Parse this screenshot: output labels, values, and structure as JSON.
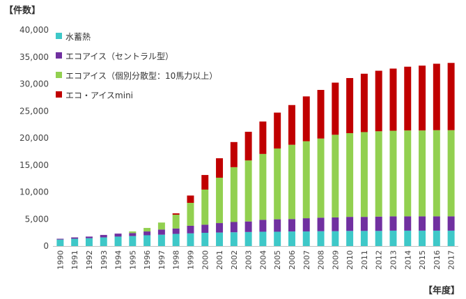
{
  "chart_data": {
    "type": "bar",
    "stacked": true,
    "ylabel": "【件数】",
    "xlabel": "【年度】",
    "ylim": [
      0,
      40000
    ],
    "yticks": [
      "0",
      "5,000",
      "10,000",
      "15,000",
      "20,000",
      "25,000",
      "30,000",
      "35,000",
      "40,000"
    ],
    "grid": false,
    "legend_position": "top-left",
    "categories": [
      "1990",
      "1991",
      "1992",
      "1993",
      "1994",
      "1995",
      "1996",
      "1997",
      "1998",
      "1999",
      "2000",
      "2001",
      "2002",
      "2003",
      "2004",
      "2005",
      "2006",
      "2007",
      "2008",
      "2009",
      "2010",
      "2011",
      "2012",
      "2013",
      "2014",
      "2015",
      "2016",
      "2017"
    ],
    "series": [
      {
        "name": "水蓄熱",
        "color": "#3ec8c8",
        "values": [
          1200,
          1350,
          1450,
          1600,
          1750,
          1850,
          2000,
          2100,
          2250,
          2350,
          2450,
          2500,
          2550,
          2600,
          2650,
          2650,
          2700,
          2700,
          2750,
          2750,
          2800,
          2800,
          2800,
          2850,
          2850,
          2850,
          2850,
          2850
        ]
      },
      {
        "name": "エコアイス（セントラル型）",
        "color": "#7030a0",
        "values": [
          150,
          250,
          300,
          450,
          550,
          550,
          700,
          950,
          1000,
          1400,
          1500,
          1750,
          1900,
          1950,
          2200,
          2300,
          2300,
          2450,
          2500,
          2550,
          2600,
          2600,
          2650,
          2650,
          2650,
          2650,
          2650,
          2650
        ]
      },
      {
        "name": "エコアイス（個別分散型：10馬力以上）",
        "color": "#92d050",
        "values": [
          0,
          0,
          0,
          0,
          0,
          300,
          650,
          1300,
          2550,
          4250,
          6500,
          8400,
          10150,
          11300,
          12200,
          13100,
          13750,
          14250,
          14650,
          15300,
          15500,
          15700,
          15800,
          15850,
          15900,
          15900,
          15950,
          15950
        ]
      },
      {
        "name": "エコ・アイスmini",
        "color": "#c00000",
        "values": [
          0,
          0,
          0,
          0,
          0,
          0,
          0,
          0,
          250,
          1350,
          2700,
          3600,
          4650,
          5300,
          6000,
          6650,
          7350,
          8300,
          9000,
          9650,
          10200,
          10800,
          11200,
          11500,
          11800,
          12000,
          12300,
          12450
        ]
      }
    ]
  }
}
